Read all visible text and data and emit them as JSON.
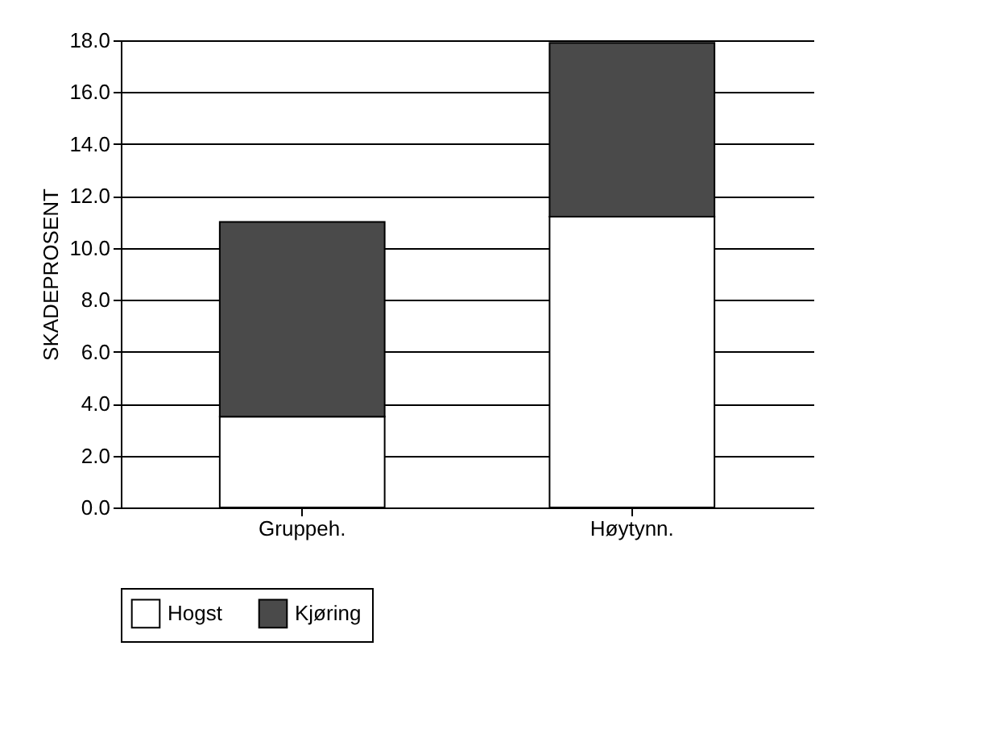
{
  "chart_data": {
    "type": "bar",
    "stacked": true,
    "ylabel": "SKADEPROSENT",
    "categories": [
      "Gruppeh.",
      "Høytynn."
    ],
    "series": [
      {
        "name": "Hogst",
        "color": "#ffffff",
        "values": [
          3.5,
          11.2
        ]
      },
      {
        "name": "Kjøring",
        "color": "#4a4a4a",
        "values": [
          7.5,
          6.7
        ]
      }
    ],
    "ylim": [
      0,
      18
    ],
    "yticks": [
      {
        "value": 0,
        "label": "0.0"
      },
      {
        "value": 2,
        "label": "2.0"
      },
      {
        "value": 4,
        "label": "4.0"
      },
      {
        "value": 6,
        "label": "6.0"
      },
      {
        "value": 8,
        "label": "8.0"
      },
      {
        "value": 10,
        "label": "10.0"
      },
      {
        "value": 12,
        "label": "12.0"
      },
      {
        "value": 14,
        "label": "14.0"
      },
      {
        "value": 16,
        "label": "16.0"
      },
      {
        "value": 18,
        "label": "18.0"
      }
    ],
    "grid": "y",
    "legend": "bottom"
  }
}
